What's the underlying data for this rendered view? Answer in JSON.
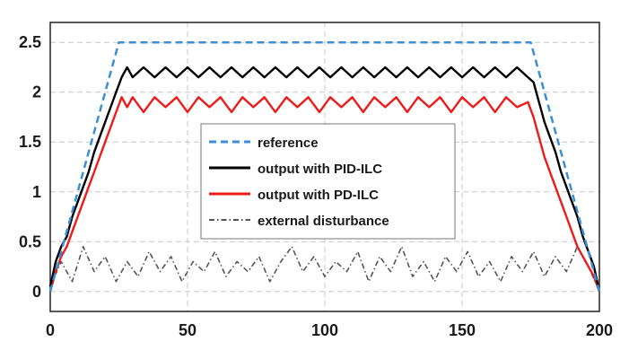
{
  "chart_data": {
    "type": "line",
    "title": "",
    "xlabel": "",
    "ylabel": "",
    "xlim": [
      0,
      200
    ],
    "ylim": [
      -0.2,
      2.7
    ],
    "grid": true,
    "x_ticks": [
      "0",
      "50",
      "100",
      "150",
      "200"
    ],
    "y_ticks": [
      "0",
      "0.5",
      "1",
      "1.5",
      "2",
      "2.5"
    ],
    "legend_position": "center",
    "series": [
      {
        "name": "reference",
        "color": "#3a8fd6",
        "style": "dashed",
        "x": [
          0,
          25,
          175,
          200
        ],
        "y": [
          0,
          2.5,
          2.5,
          0
        ]
      },
      {
        "name": "output with PID-ILC",
        "color": "#000000",
        "style": "solid",
        "x": [
          0,
          2,
          4,
          6,
          8,
          10,
          12,
          14,
          16,
          18,
          20,
          22,
          24,
          26,
          28,
          30,
          34,
          38,
          42,
          46,
          50,
          54,
          58,
          62,
          66,
          70,
          74,
          78,
          82,
          86,
          90,
          94,
          98,
          102,
          106,
          110,
          114,
          118,
          122,
          126,
          130,
          134,
          138,
          142,
          146,
          150,
          154,
          158,
          162,
          166,
          170,
          174,
          176,
          178,
          180,
          182,
          184,
          186,
          188,
          190,
          192,
          194,
          196,
          198,
          200
        ],
        "y": [
          0.05,
          0.3,
          0.45,
          0.55,
          0.75,
          0.9,
          1.05,
          1.2,
          1.4,
          1.55,
          1.7,
          1.85,
          2.0,
          2.15,
          2.25,
          2.15,
          2.25,
          2.15,
          2.25,
          2.15,
          2.25,
          2.15,
          2.25,
          2.15,
          2.25,
          2.15,
          2.25,
          2.15,
          2.25,
          2.15,
          2.25,
          2.15,
          2.25,
          2.15,
          2.25,
          2.15,
          2.25,
          2.15,
          2.25,
          2.15,
          2.25,
          2.15,
          2.25,
          2.15,
          2.25,
          2.15,
          2.25,
          2.15,
          2.25,
          2.15,
          2.25,
          2.15,
          2.1,
          1.9,
          1.7,
          1.55,
          1.4,
          1.2,
          1.05,
          0.9,
          0.75,
          0.55,
          0.4,
          0.25,
          0.0
        ]
      },
      {
        "name": "output with PD-ILC",
        "color": "#ee1b1b",
        "style": "solid",
        "x": [
          0,
          2,
          4,
          6,
          8,
          10,
          12,
          14,
          16,
          18,
          20,
          22,
          24,
          26,
          28,
          30,
          34,
          38,
          42,
          46,
          50,
          54,
          58,
          62,
          66,
          70,
          74,
          78,
          82,
          86,
          90,
          94,
          98,
          102,
          106,
          110,
          114,
          118,
          122,
          126,
          130,
          134,
          138,
          142,
          146,
          150,
          154,
          158,
          162,
          166,
          170,
          174,
          176,
          178,
          180,
          182,
          184,
          186,
          188,
          190,
          192,
          194,
          196,
          198,
          200
        ],
        "y": [
          0.0,
          0.2,
          0.35,
          0.45,
          0.6,
          0.75,
          0.9,
          1.05,
          1.2,
          1.35,
          1.5,
          1.65,
          1.8,
          1.95,
          1.85,
          1.95,
          1.8,
          1.95,
          1.85,
          1.95,
          1.8,
          1.95,
          1.85,
          1.95,
          1.8,
          1.95,
          1.85,
          1.95,
          1.8,
          1.95,
          1.85,
          1.95,
          1.8,
          1.95,
          1.85,
          1.95,
          1.8,
          1.95,
          1.85,
          1.95,
          1.8,
          1.95,
          1.85,
          1.95,
          1.8,
          1.95,
          1.85,
          1.95,
          1.8,
          1.95,
          1.85,
          1.9,
          1.75,
          1.55,
          1.35,
          1.2,
          1.05,
          0.9,
          0.75,
          0.6,
          0.45,
          0.35,
          0.25,
          0.15,
          0.0
        ]
      },
      {
        "name": "external disturbance",
        "color": "#555555",
        "style": "dashdot",
        "x": [
          0,
          4,
          8,
          12,
          16,
          20,
          24,
          28,
          32,
          36,
          40,
          44,
          48,
          52,
          56,
          60,
          64,
          68,
          72,
          76,
          80,
          84,
          88,
          92,
          96,
          100,
          104,
          108,
          112,
          116,
          120,
          124,
          128,
          132,
          136,
          140,
          144,
          148,
          152,
          156,
          160,
          164,
          168,
          172,
          176,
          180,
          184,
          188,
          192,
          196,
          200
        ],
        "y": [
          0.05,
          0.3,
          0.1,
          0.45,
          0.2,
          0.35,
          0.1,
          0.3,
          0.15,
          0.4,
          0.2,
          0.35,
          0.1,
          0.3,
          0.2,
          0.4,
          0.15,
          0.3,
          0.2,
          0.35,
          0.1,
          0.3,
          0.45,
          0.2,
          0.35,
          0.15,
          0.3,
          0.2,
          0.4,
          0.1,
          0.35,
          0.2,
          0.45,
          0.15,
          0.3,
          0.1,
          0.35,
          0.2,
          0.4,
          0.15,
          0.3,
          0.1,
          0.35,
          0.2,
          0.4,
          0.15,
          0.35,
          0.2,
          0.45,
          0.25,
          0.0
        ]
      }
    ]
  }
}
